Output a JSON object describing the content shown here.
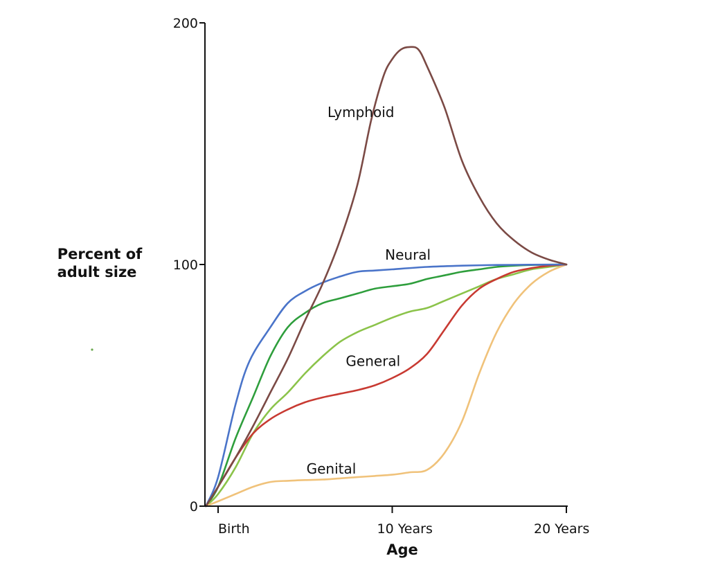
{
  "chart_data": {
    "type": "line",
    "title": "",
    "xlabel": "Age",
    "ylabel": [
      "Percent of",
      "adult size"
    ],
    "xlim": [
      -0.7,
      20
    ],
    "ylim": [
      0,
      200
    ],
    "x_ticks": [
      {
        "value": 0,
        "label": "Birth"
      },
      {
        "value": 10,
        "label": "10 Years"
      },
      {
        "value": 20,
        "label": "20 Years"
      }
    ],
    "y_ticks": [
      {
        "value": 0,
        "label": "0"
      },
      {
        "value": 100,
        "label": "100"
      },
      {
        "value": 200,
        "label": "200"
      }
    ],
    "series": [
      {
        "name": "Lymphoid",
        "color": "#7b4a45",
        "label_at": [
          8.2,
          163
        ],
        "points": [
          [
            -0.7,
            0
          ],
          [
            0,
            8
          ],
          [
            1,
            20
          ],
          [
            2,
            33
          ],
          [
            3,
            47
          ],
          [
            4,
            61
          ],
          [
            5,
            77
          ],
          [
            6,
            92
          ],
          [
            7,
            110
          ],
          [
            8,
            133
          ],
          [
            8.8,
            160
          ],
          [
            9.5,
            178
          ],
          [
            10,
            185
          ],
          [
            10.5,
            189
          ],
          [
            11,
            190
          ],
          [
            11.5,
            189
          ],
          [
            12,
            182
          ],
          [
            13,
            165
          ],
          [
            14,
            143
          ],
          [
            15,
            128
          ],
          [
            16,
            117
          ],
          [
            17,
            110
          ],
          [
            18,
            105
          ],
          [
            19,
            102
          ],
          [
            20,
            100
          ]
        ]
      },
      {
        "name": "Neural",
        "color": "#4a74c9",
        "label_at": [
          10.9,
          104
        ],
        "points": [
          [
            -0.7,
            0
          ],
          [
            0,
            12
          ],
          [
            1,
            42
          ],
          [
            1.8,
            60
          ],
          [
            3,
            74
          ],
          [
            4,
            84
          ],
          [
            5,
            89
          ],
          [
            6,
            92.5
          ],
          [
            7,
            95
          ],
          [
            8,
            97
          ],
          [
            9,
            97.5
          ],
          [
            10,
            98
          ],
          [
            12,
            99
          ],
          [
            14,
            99.5
          ],
          [
            16,
            99.8
          ],
          [
            18,
            99.9
          ],
          [
            20,
            100
          ]
        ]
      },
      {
        "name": "",
        "color": "#2e9e3c",
        "points": [
          [
            -0.7,
            0
          ],
          [
            0,
            8
          ],
          [
            1,
            28
          ],
          [
            2,
            45
          ],
          [
            3,
            62
          ],
          [
            4,
            74
          ],
          [
            5,
            80
          ],
          [
            6,
            84
          ],
          [
            7,
            86
          ],
          [
            8,
            88
          ],
          [
            9,
            90
          ],
          [
            10,
            91
          ],
          [
            11,
            92
          ],
          [
            12,
            94
          ],
          [
            13,
            95.5
          ],
          [
            14,
            97
          ],
          [
            15,
            98
          ],
          [
            16,
            99
          ],
          [
            17,
            99.5
          ],
          [
            18,
            99.8
          ],
          [
            20,
            100
          ]
        ]
      },
      {
        "name": "",
        "color": "#8bc34a",
        "points": [
          [
            -0.7,
            0
          ],
          [
            0,
            5
          ],
          [
            1,
            16
          ],
          [
            2,
            30
          ],
          [
            3,
            40
          ],
          [
            4,
            47
          ],
          [
            5,
            55
          ],
          [
            6,
            62
          ],
          [
            7,
            68
          ],
          [
            8,
            72
          ],
          [
            9,
            75
          ],
          [
            10,
            78
          ],
          [
            11,
            80.5
          ],
          [
            12,
            82
          ],
          [
            13,
            85
          ],
          [
            14,
            88
          ],
          [
            15,
            91
          ],
          [
            16,
            94
          ],
          [
            17,
            96
          ],
          [
            18,
            98
          ],
          [
            19,
            99
          ],
          [
            20,
            100
          ]
        ]
      },
      {
        "name": "General",
        "color": "#c83a32",
        "label_at": [
          8.9,
          60
        ],
        "points": [
          [
            -0.7,
            0
          ],
          [
            0,
            8
          ],
          [
            1,
            20
          ],
          [
            2,
            30
          ],
          [
            3,
            36
          ],
          [
            4,
            40
          ],
          [
            5,
            43
          ],
          [
            6,
            45
          ],
          [
            7,
            46.5
          ],
          [
            8,
            48
          ],
          [
            9,
            50
          ],
          [
            10,
            53
          ],
          [
            11,
            57
          ],
          [
            12,
            63
          ],
          [
            13,
            73
          ],
          [
            14,
            83
          ],
          [
            15,
            90
          ],
          [
            16,
            94
          ],
          [
            17,
            97
          ],
          [
            18,
            98.5
          ],
          [
            19,
            99.5
          ],
          [
            20,
            100
          ]
        ]
      },
      {
        "name": "Genital",
        "color": "#f0c27a",
        "label_at": [
          6.5,
          15.5
        ],
        "points": [
          [
            -0.7,
            0
          ],
          [
            0,
            2
          ],
          [
            1,
            5
          ],
          [
            2,
            8
          ],
          [
            3,
            10
          ],
          [
            4,
            10.5
          ],
          [
            5,
            10.8
          ],
          [
            6,
            11
          ],
          [
            7,
            11.5
          ],
          [
            8,
            12
          ],
          [
            9,
            12.5
          ],
          [
            10,
            13
          ],
          [
            11,
            14
          ],
          [
            12,
            15
          ],
          [
            13,
            22
          ],
          [
            14,
            35
          ],
          [
            15,
            55
          ],
          [
            16,
            72
          ],
          [
            17,
            84
          ],
          [
            18,
            92
          ],
          [
            19,
            97
          ],
          [
            20,
            100
          ]
        ]
      }
    ]
  }
}
